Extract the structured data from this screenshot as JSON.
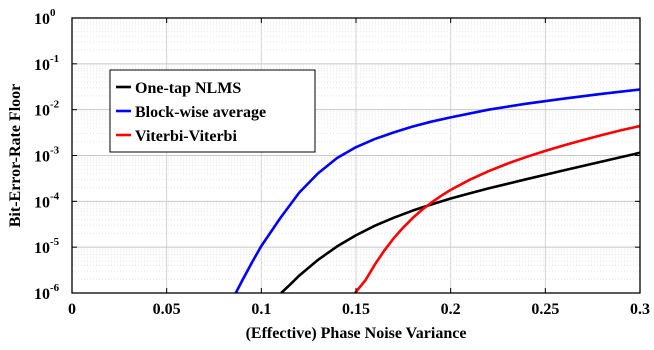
{
  "chart_data": {
    "type": "line",
    "xlabel": "(Effective) Phase Noise Variance",
    "ylabel": "Bit-Error-Rate Floor",
    "xlim": [
      0,
      0.3
    ],
    "ylim": [
      1e-06,
      1
    ],
    "yscale": "log",
    "grid": true,
    "legend_position": "top-left",
    "x_ticks": [
      {
        "value": 0,
        "label": "0"
      },
      {
        "value": 0.05,
        "label": "0.05"
      },
      {
        "value": 0.1,
        "label": "0.1"
      },
      {
        "value": 0.15,
        "label": "0.15"
      },
      {
        "value": 0.2,
        "label": "0.2"
      },
      {
        "value": 0.25,
        "label": "0.25"
      },
      {
        "value": 0.3,
        "label": "0.3"
      }
    ],
    "y_ticks": [
      {
        "value": 1e-06,
        "base": "10",
        "exp": "-6"
      },
      {
        "value": 1e-05,
        "base": "10",
        "exp": "-5"
      },
      {
        "value": 0.0001,
        "base": "10",
        "exp": "-4"
      },
      {
        "value": 0.001,
        "base": "10",
        "exp": "-3"
      },
      {
        "value": 0.01,
        "base": "10",
        "exp": "-2"
      },
      {
        "value": 0.1,
        "base": "10",
        "exp": "-1"
      },
      {
        "value": 1,
        "base": "10",
        "exp": "0"
      }
    ],
    "series": [
      {
        "name": "One-tap NLMS",
        "color": "#000000",
        "x": [
          0.1105,
          0.115,
          0.12,
          0.13,
          0.14,
          0.15,
          0.16,
          0.17,
          0.18,
          0.19,
          0.2,
          0.21,
          0.22,
          0.23,
          0.24,
          0.25,
          0.26,
          0.27,
          0.28,
          0.29,
          0.3
        ],
        "y": [
          1e-06,
          1.5e-06,
          2.4e-06,
          5.3e-06,
          1.04e-05,
          1.82e-05,
          2.94e-05,
          4.4e-05,
          6.3e-05,
          8.6e-05,
          0.000115,
          0.000149,
          0.000192,
          0.000241,
          0.000304,
          0.000381,
          0.000476,
          0.000594,
          0.00074,
          0.00092,
          0.00115
        ]
      },
      {
        "name": "Block-wise average",
        "color": "#0000ff",
        "x": [
          0.0865,
          0.09,
          0.095,
          0.1,
          0.11,
          0.12,
          0.13,
          0.14,
          0.15,
          0.16,
          0.17,
          0.18,
          0.19,
          0.2,
          0.22,
          0.24,
          0.26,
          0.28,
          0.3
        ],
        "y": [
          1e-06,
          1.9e-06,
          4.6e-06,
          1.06e-05,
          4.3e-05,
          0.000155,
          0.00041,
          0.00088,
          0.00152,
          0.0023,
          0.0032,
          0.0043,
          0.0055,
          0.0068,
          0.01,
          0.0135,
          0.0175,
          0.0222,
          0.0275
        ]
      },
      {
        "name": "Viterbi-Viterbi",
        "color": "#ff0000",
        "x": [
          0.1495,
          0.155,
          0.16,
          0.165,
          0.17,
          0.175,
          0.18,
          0.185,
          0.19,
          0.195,
          0.2,
          0.21,
          0.22,
          0.23,
          0.24,
          0.25,
          0.26,
          0.27,
          0.28,
          0.29,
          0.3
        ],
        "y": [
          1e-06,
          1.9e-06,
          4.2e-06,
          8.5e-06,
          1.58e-05,
          2.7e-05,
          4.35e-05,
          6.6e-05,
          9.5e-05,
          0.000132,
          0.000178,
          0.000295,
          0.000455,
          0.000665,
          0.00093,
          0.00126,
          0.00167,
          0.00218,
          0.0028,
          0.00355,
          0.0044
        ]
      }
    ]
  }
}
